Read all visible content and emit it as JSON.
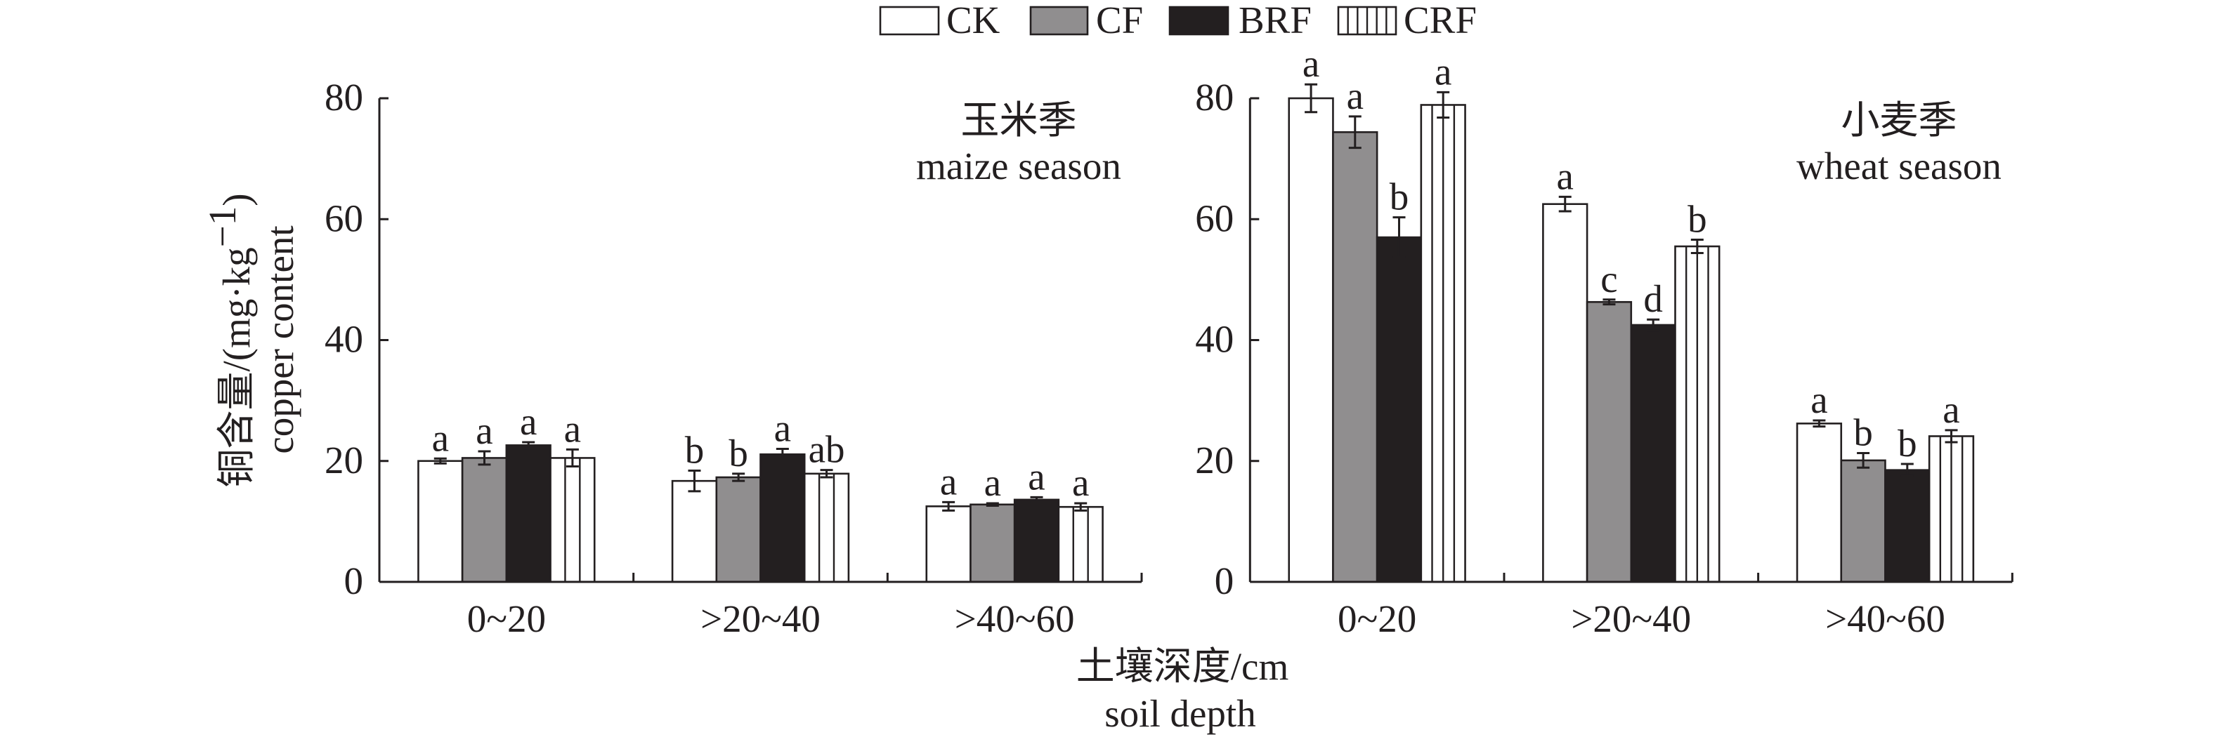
{
  "colors": {
    "ink": "#231f20",
    "white": "#ffffff",
    "gray": "#908e8f",
    "black": "#231f20",
    "hatched": "#ffffff"
  },
  "legend": {
    "items": [
      {
        "key": "CK",
        "label": "CK",
        "style": "white"
      },
      {
        "key": "CF",
        "label": "CF",
        "style": "gray"
      },
      {
        "key": "BRF",
        "label": "BRF",
        "style": "black"
      },
      {
        "key": "CRF",
        "label": "CRF",
        "style": "hatched"
      }
    ]
  },
  "axes": {
    "ylabel_main": "铜含量/(mg·kg",
    "ylabel_sup": "−1",
    "ylabel_close": ")",
    "ylabel_en": "copper content",
    "xlabel_zh": "土壤深度/cm",
    "xlabel_en": "soil depth"
  },
  "chart_data": [
    {
      "type": "bar",
      "title": "玉米季 maize season",
      "title_zh": "玉米季",
      "title_en": "maize season",
      "categories": [
        "0~20",
        ">20~40",
        ">40~60"
      ],
      "series": [
        {
          "name": "CK",
          "values": [
            20.0,
            16.7,
            12.5
          ],
          "errors": [
            0.4,
            1.7,
            0.7
          ],
          "letters": [
            "a",
            "b",
            "a"
          ]
        },
        {
          "name": "CF",
          "values": [
            20.5,
            17.3,
            12.8
          ],
          "errors": [
            1.1,
            0.6,
            0.2
          ],
          "letters": [
            "a",
            "b",
            "a"
          ]
        },
        {
          "name": "BRF",
          "values": [
            22.6,
            21.1,
            13.6
          ],
          "errors": [
            0.5,
            0.9,
            0.4
          ],
          "letters": [
            "a",
            "a",
            "a"
          ]
        },
        {
          "name": "CRF",
          "values": [
            20.5,
            17.9,
            12.4
          ],
          "errors": [
            1.4,
            0.6,
            0.6
          ],
          "letters": [
            "a",
            "ab",
            "a"
          ]
        }
      ],
      "xlabel": "土壤深度/cm soil depth",
      "ylabel": "铜含量/(mg·kg⁻¹) copper content",
      "ylim": [
        0,
        80
      ],
      "yticks": [
        0,
        20,
        40,
        60,
        80
      ],
      "grid": false,
      "legend": "top-center"
    },
    {
      "type": "bar",
      "title": "小麦季 wheat season",
      "title_zh": "小麦季",
      "title_en": "wheat season",
      "categories": [
        "0~20",
        ">20~40",
        ">40~60"
      ],
      "series": [
        {
          "name": "CK",
          "values": [
            80.0,
            62.5,
            26.2
          ],
          "errors": [
            2.3,
            1.2,
            0.5
          ],
          "letters": [
            "a",
            "a",
            "a"
          ]
        },
        {
          "name": "CF",
          "values": [
            74.4,
            46.3,
            20.1
          ],
          "errors": [
            2.6,
            0.4,
            1.2
          ],
          "letters": [
            "a",
            "c",
            "b"
          ]
        },
        {
          "name": "BRF",
          "values": [
            57.0,
            42.5,
            18.5
          ],
          "errors": [
            3.3,
            0.9,
            1.0
          ],
          "letters": [
            "b",
            "d",
            "b"
          ]
        },
        {
          "name": "CRF",
          "values": [
            78.9,
            55.5,
            24.1
          ],
          "errors": [
            2.1,
            1.1,
            1.0
          ],
          "letters": [
            "a",
            "b",
            "a"
          ]
        }
      ],
      "xlabel": "土壤深度/cm soil depth",
      "ylabel": "铜含量/(mg·kg⁻¹) copper content",
      "ylim": [
        0,
        80
      ],
      "yticks": [
        0,
        20,
        40,
        60,
        80
      ],
      "grid": false,
      "legend": "top-center"
    }
  ]
}
